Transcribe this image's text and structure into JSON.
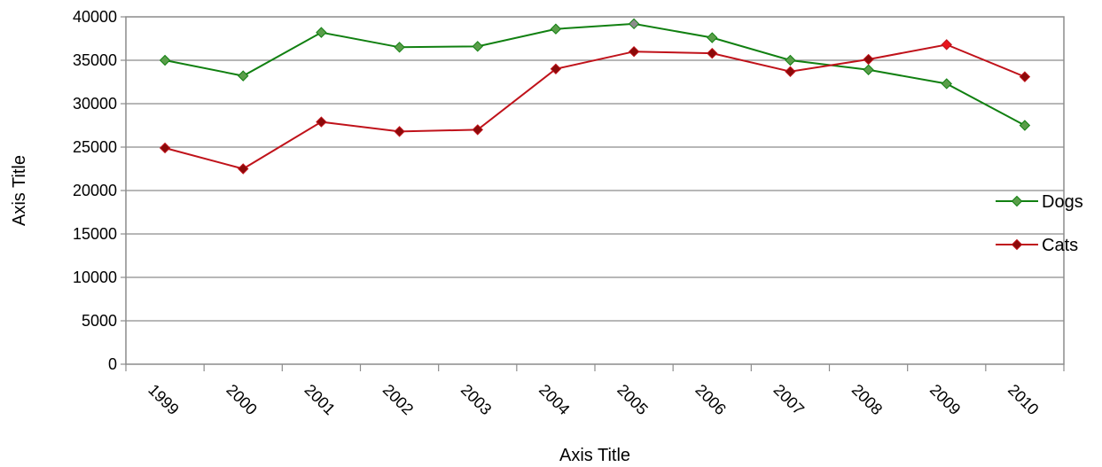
{
  "chart_data": {
    "type": "line",
    "xlabel": "Axis Title",
    "ylabel": "Axis Title",
    "ylim": [
      0,
      40000
    ],
    "y_ticks": [
      0,
      5000,
      10000,
      15000,
      20000,
      25000,
      30000,
      35000,
      40000
    ],
    "grid": "horizontal",
    "legend_position": "right",
    "categories": [
      "1999",
      "2000",
      "2001",
      "2002",
      "2003",
      "2004",
      "2005",
      "2006",
      "2007",
      "2008",
      "2009",
      "2010"
    ],
    "series": [
      {
        "name": "Dogs",
        "color": "#118011",
        "marker_color": "#5A9E4A",
        "values": [
          35000,
          33200,
          38200,
          36500,
          36600,
          38600,
          39200,
          37600,
          35000,
          33900,
          32300,
          27500
        ],
        "highlight": {
          "index": 6,
          "color": "#8C8C8C"
        }
      },
      {
        "name": "Cats",
        "color": "#C0121A",
        "marker_color": "#8B0A0A",
        "values": [
          24900,
          22500,
          27900,
          26800,
          27000,
          34000,
          36000,
          35800,
          33700,
          35100,
          36800,
          33100
        ],
        "highlight": {
          "index": 10,
          "color": "#E8141C"
        }
      }
    ]
  }
}
